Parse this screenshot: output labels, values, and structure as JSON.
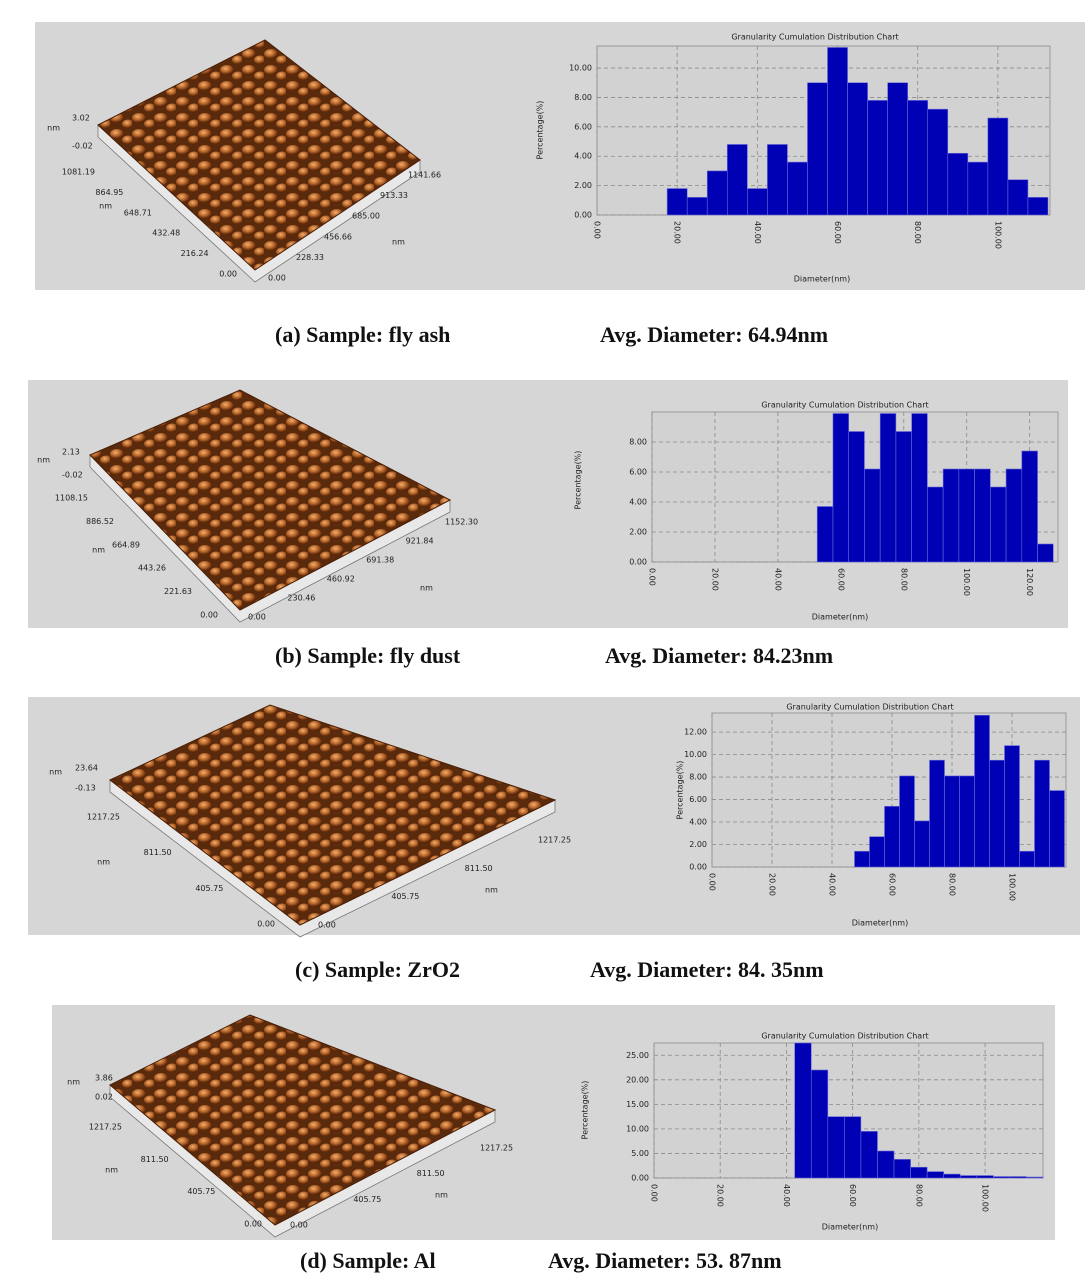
{
  "chart_data": [
    {
      "type": "histogram",
      "title": "Granularity Cumulation Distribution  Chart",
      "xlabel": "Diameter(nm)",
      "ylabel": "Percentage(%)",
      "bins": [
        17.5,
        22.5,
        27.5,
        32.5,
        37.5,
        42.5,
        47.5,
        52.5,
        57.5,
        62.5,
        67.5,
        72.5,
        77.5,
        82.5,
        87.5,
        92.5,
        97.5,
        102.5,
        107.5,
        112.5
      ],
      "values": [
        1.8,
        1.2,
        3.0,
        4.8,
        1.8,
        4.8,
        3.6,
        9.0,
        11.4,
        9.0,
        7.8,
        9.0,
        7.8,
        7.2,
        4.2,
        3.6,
        6.6,
        2.4,
        1.2
      ],
      "color": "#0000b4",
      "xlim": [
        0,
        113
      ],
      "ylim": [
        0,
        11.5
      ],
      "xticks": [
        {
          "value": 0,
          "label": "0.00"
        },
        {
          "value": 20,
          "label": "20.00"
        },
        {
          "value": 40,
          "label": "40.00"
        },
        {
          "value": 60,
          "label": "60.00"
        },
        {
          "value": 80,
          "label": "80.00"
        },
        {
          "value": 100,
          "label": "100.00"
        }
      ],
      "yticks": [
        {
          "value": 0,
          "label": "0.00"
        },
        {
          "value": 2,
          "label": "2.00"
        },
        {
          "value": 4,
          "label": "4.00"
        },
        {
          "value": 6,
          "label": "6.00"
        },
        {
          "value": 8,
          "label": "8.00"
        },
        {
          "value": 10,
          "label": "10.00"
        }
      ],
      "grid": true,
      "caption": {
        "sample": "(a)  Sample: fly ash",
        "avg": "Avg. Diameter: 64.94nm"
      },
      "afm": {
        "z_unit": "nm",
        "z": [
          "3.02",
          "-0.02"
        ],
        "y_unit": "nm",
        "y": [
          "1081.19",
          "864.95",
          "648.71",
          "432.48",
          "216.24",
          "0.00"
        ],
        "x_unit": "nm",
        "x": [
          "0.00",
          "228.33",
          "456.66",
          "685.00",
          "913.33",
          "1141.66"
        ]
      }
    },
    {
      "type": "histogram",
      "title": "Granularity Cumulation Distribution  Chart",
      "xlabel": "Diameter(nm)",
      "ylabel": "Percentage(%)",
      "bins": [
        52.5,
        57.5,
        62.5,
        67.5,
        72.5,
        77.5,
        82.5,
        87.5,
        92.5,
        97.5,
        102.5,
        107.5,
        112.5,
        117.5,
        122.5,
        127.5
      ],
      "values": [
        3.7,
        9.9,
        8.7,
        6.2,
        9.9,
        8.7,
        9.9,
        5.0,
        6.2,
        6.2,
        6.2,
        5.0,
        6.2,
        7.4,
        1.2
      ],
      "color": "#0000b4",
      "xlim": [
        0,
        129
      ],
      "ylim": [
        0,
        10
      ],
      "xticks": [
        {
          "value": 0,
          "label": "0.00"
        },
        {
          "value": 20,
          "label": "20.00"
        },
        {
          "value": 40,
          "label": "40.00"
        },
        {
          "value": 60,
          "label": "60.00"
        },
        {
          "value": 80,
          "label": "80.00"
        },
        {
          "value": 100,
          "label": "100.00"
        },
        {
          "value": 120,
          "label": "120.00"
        }
      ],
      "yticks": [
        {
          "value": 0,
          "label": "0.00"
        },
        {
          "value": 2,
          "label": "2.00"
        },
        {
          "value": 4,
          "label": "4.00"
        },
        {
          "value": 6,
          "label": "6.00"
        },
        {
          "value": 8,
          "label": "8.00"
        }
      ],
      "grid": true,
      "caption": {
        "sample": "(b)  Sample: fly dust",
        "avg": "Avg. Diameter: 84.23nm"
      },
      "afm": {
        "z_unit": "nm",
        "z": [
          "2.13",
          "-0.02"
        ],
        "y_unit": "nm",
        "y": [
          "1108.15",
          "886.52",
          "664.89",
          "443.26",
          "221.63",
          "0.00"
        ],
        "x_unit": "nm",
        "x": [
          "0.00",
          "230.46",
          "460.92",
          "691.38",
          "921.84",
          "1152.30"
        ]
      }
    },
    {
      "type": "histogram",
      "title": "Granularity Cumulation Distribution  Chart",
      "xlabel": "Diameter(nm)",
      "ylabel": "Percentage(%)",
      "bins": [
        47.5,
        52.5,
        57.5,
        62.5,
        67.5,
        72.5,
        77.5,
        82.5,
        87.5,
        92.5,
        97.5,
        102.5,
        107.5,
        112.5,
        117.5
      ],
      "values": [
        1.4,
        2.7,
        5.4,
        8.1,
        4.1,
        9.5,
        8.1,
        8.1,
        13.5,
        9.5,
        10.8,
        1.4,
        9.5,
        6.8
      ],
      "color": "#0000b4",
      "xlim": [
        0,
        118
      ],
      "ylim": [
        0,
        13.7
      ],
      "xticks": [
        {
          "value": 0,
          "label": "0.00"
        },
        {
          "value": 20,
          "label": "20.00"
        },
        {
          "value": 40,
          "label": "40.00"
        },
        {
          "value": 60,
          "label": "60.00"
        },
        {
          "value": 80,
          "label": "80.00"
        },
        {
          "value": 100,
          "label": "100.00"
        }
      ],
      "yticks": [
        {
          "value": 0,
          "label": "0.00"
        },
        {
          "value": 2,
          "label": "2.00"
        },
        {
          "value": 4,
          "label": "4.00"
        },
        {
          "value": 6,
          "label": "6.00"
        },
        {
          "value": 8,
          "label": "8.00"
        },
        {
          "value": 10,
          "label": "10.00"
        },
        {
          "value": 12,
          "label": "12.00"
        }
      ],
      "grid": true,
      "caption": {
        "sample": "(c) Sample: ZrO2",
        "avg": "Avg. Diameter: 84. 35nm"
      },
      "afm": {
        "z_unit": "nm",
        "z": [
          "23.64",
          "-0.13"
        ],
        "y_unit": "nm",
        "y": [
          "1217.25",
          "811.50",
          "405.75",
          "0.00"
        ],
        "x_unit": "nm",
        "x": [
          "0.00",
          "405.75",
          "811.50",
          "1217.25"
        ]
      }
    },
    {
      "type": "histogram",
      "title": "Granularity Cumulation Distribution  Chart",
      "xlabel": "Diameter(nm)",
      "ylabel": "Percentage(%)",
      "bins": [
        42.5,
        47.5,
        52.5,
        57.5,
        62.5,
        67.5,
        72.5,
        77.5,
        82.5,
        87.5,
        92.5,
        97.5,
        102.5,
        107.5,
        112.5,
        117.5
      ],
      "values": [
        27.5,
        22.0,
        12.5,
        12.5,
        9.5,
        5.5,
        3.8,
        2.2,
        1.3,
        0.8,
        0.5,
        0.5,
        0.3,
        0.3,
        0.2
      ],
      "color": "#0000b4",
      "xlim": [
        0,
        117.5
      ],
      "ylim": [
        0,
        27.5
      ],
      "xticks": [
        {
          "value": 0,
          "label": "0.00"
        },
        {
          "value": 20,
          "label": "20.00"
        },
        {
          "value": 40,
          "label": "40.00"
        },
        {
          "value": 60,
          "label": "60.00"
        },
        {
          "value": 80,
          "label": "80.00"
        },
        {
          "value": 100,
          "label": "100.00"
        }
      ],
      "yticks": [
        {
          "value": 0,
          "label": "0.00"
        },
        {
          "value": 5,
          "label": "5.00"
        },
        {
          "value": 10,
          "label": "10.00"
        },
        {
          "value": 15,
          "label": "15.00"
        },
        {
          "value": 20,
          "label": "20.00"
        },
        {
          "value": 25,
          "label": "25.00"
        }
      ],
      "grid": true,
      "caption": {
        "sample": "(d) Sample: Al",
        "avg": "Avg. Diameter: 53. 87nm"
      },
      "afm": {
        "z_unit": "nm",
        "z": [
          "3.86",
          "0.02"
        ],
        "y_unit": "nm",
        "y": [
          "1217.25",
          "811.50",
          "405.75",
          "0.00"
        ],
        "x_unit": "nm",
        "x": [
          "0.00",
          "405.75",
          "811.50",
          "1217.25"
        ]
      }
    }
  ]
}
